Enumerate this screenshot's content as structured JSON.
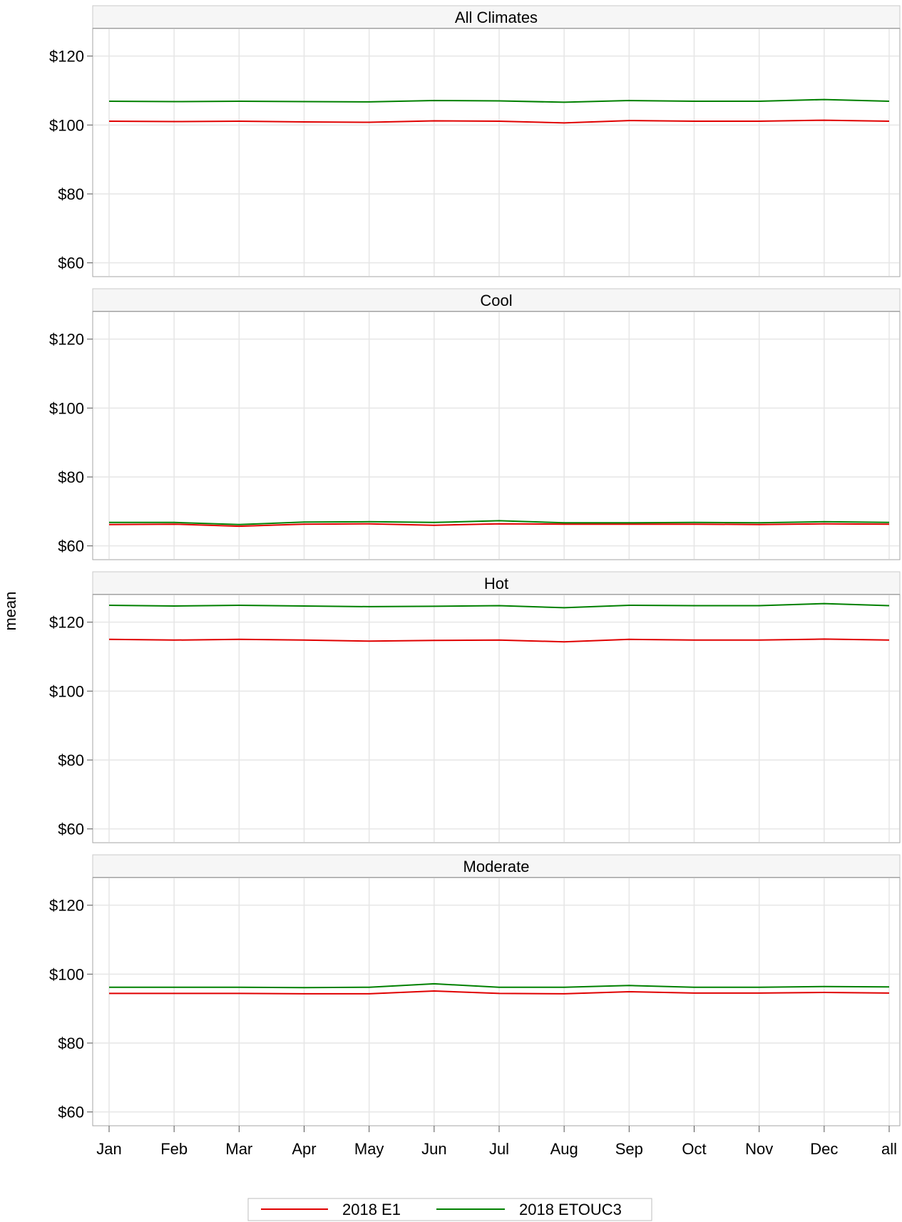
{
  "chart_data": {
    "type": "line",
    "ylabel": "mean",
    "xlabel": "",
    "ylim": [
      56,
      128
    ],
    "yticks": [
      60,
      80,
      100,
      120
    ],
    "ytick_labels": [
      "$60",
      "$80",
      "$100",
      "$120"
    ],
    "grid": true,
    "legend_position": "bottom",
    "categories": [
      "Jan",
      "Feb",
      "Mar",
      "Apr",
      "May",
      "Jun",
      "Jul",
      "Aug",
      "Sep",
      "Oct",
      "Nov",
      "Dec",
      "all"
    ],
    "series_names": [
      "2018 E1",
      "2018 ETOUC3"
    ],
    "series_colors": [
      "#e00000",
      "#008000"
    ],
    "panels": [
      {
        "title": "All Climates",
        "series": [
          {
            "name": "2018 E1",
            "values": [
              101.1,
              101.0,
              101.1,
              100.9,
              100.8,
              101.2,
              101.1,
              100.6,
              101.3,
              101.1,
              101.1,
              101.4,
              101.1
            ]
          },
          {
            "name": "2018 ETOUC3",
            "values": [
              106.9,
              106.8,
              106.9,
              106.8,
              106.7,
              107.1,
              107.0,
              106.6,
              107.1,
              106.9,
              106.9,
              107.4,
              106.9
            ]
          }
        ]
      },
      {
        "title": "Cool",
        "series": [
          {
            "name": "2018 E1",
            "values": [
              66.2,
              66.3,
              65.7,
              66.3,
              66.4,
              66.0,
              66.4,
              66.3,
              66.3,
              66.3,
              66.2,
              66.4,
              66.3
            ]
          },
          {
            "name": "2018 ETOUC3",
            "values": [
              66.8,
              66.8,
              66.2,
              66.9,
              67.0,
              66.8,
              67.3,
              66.7,
              66.7,
              66.8,
              66.7,
              67.0,
              66.8
            ]
          }
        ]
      },
      {
        "title": "Hot",
        "series": [
          {
            "name": "2018 E1",
            "values": [
              115.0,
              114.8,
              115.0,
              114.8,
              114.5,
              114.7,
              114.8,
              114.3,
              115.0,
              114.8,
              114.8,
              115.1,
              114.8
            ]
          },
          {
            "name": "2018 ETOUC3",
            "values": [
              124.9,
              124.7,
              124.9,
              124.7,
              124.5,
              124.6,
              124.8,
              124.2,
              124.9,
              124.8,
              124.8,
              125.4,
              124.8
            ]
          }
        ]
      },
      {
        "title": "Moderate",
        "series": [
          {
            "name": "2018 E1",
            "values": [
              94.4,
              94.4,
              94.4,
              94.3,
              94.3,
              95.1,
              94.4,
              94.3,
              94.9,
              94.5,
              94.5,
              94.7,
              94.5
            ]
          },
          {
            "name": "2018 ETOUC3",
            "values": [
              96.2,
              96.2,
              96.2,
              96.1,
              96.2,
              97.2,
              96.2,
              96.2,
              96.7,
              96.2,
              96.2,
              96.4,
              96.3
            ]
          }
        ]
      }
    ]
  }
}
